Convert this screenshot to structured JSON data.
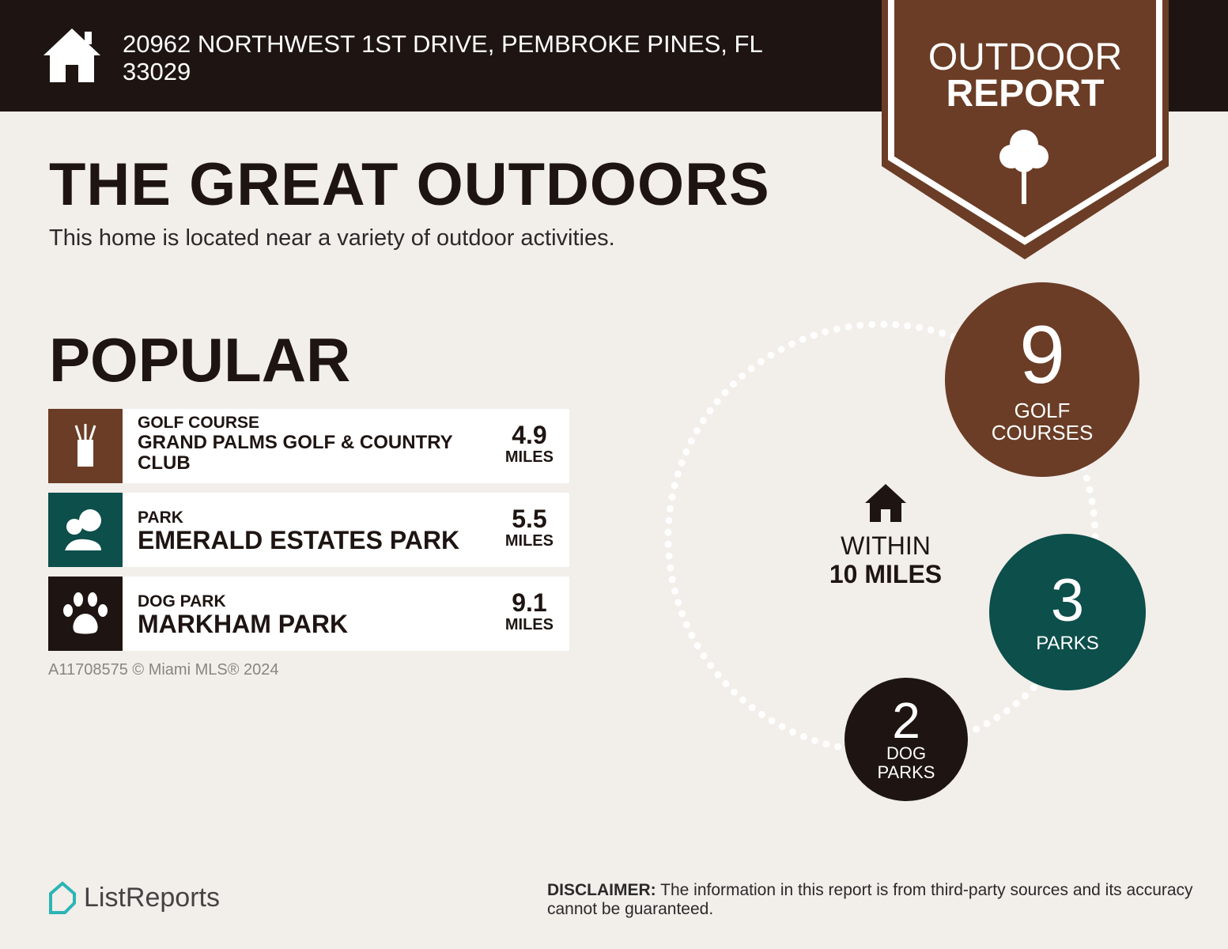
{
  "header": {
    "address": "20962 NORTHWEST 1ST DRIVE, PEMBROKE PINES, FL 33029",
    "icon": "home-icon"
  },
  "badge": {
    "line1": "OUTDOOR",
    "line2": "REPORT",
    "icon": "tree-icon"
  },
  "title": "THE GREAT OUTDOORS",
  "subtitle": "This home is located near a variety of outdoor activities.",
  "popular": {
    "heading": "POPULAR",
    "items": [
      {
        "category": "GOLF COURSE",
        "name": "GRAND PALMS GOLF & COUNTRY CLUB",
        "distance": "4.9",
        "unit": "MILES",
        "icon": "golf-bag-icon",
        "color": "#6b3d26"
      },
      {
        "category": "PARK",
        "name": "EMERALD ESTATES PARK",
        "distance": "5.5",
        "unit": "MILES",
        "icon": "trees-icon",
        "color": "#0c4f4b"
      },
      {
        "category": "DOG PARK",
        "name": "MARKHAM PARK",
        "distance": "9.1",
        "unit": "MILES",
        "icon": "paw-icon",
        "color": "#1e1512"
      }
    ]
  },
  "watermark": "A11708575 © Miami MLS® 2024",
  "summary": {
    "within_line1": "WITHIN",
    "within_line2": "10 MILES",
    "golf": {
      "count": "9",
      "label1": "GOLF",
      "label2": "COURSES",
      "color": "#6b3d26"
    },
    "parks": {
      "count": "3",
      "label1": "PARKS",
      "color": "#0c4f4b"
    },
    "dog": {
      "count": "2",
      "label1": "DOG",
      "label2": "PARKS",
      "color": "#1e1512"
    }
  },
  "footer": {
    "logo": "ListReports",
    "disclaimer_label": "DISCLAIMER:",
    "disclaimer_text": " The information in this report is from third-party sources and its accuracy cannot be guaranteed."
  }
}
